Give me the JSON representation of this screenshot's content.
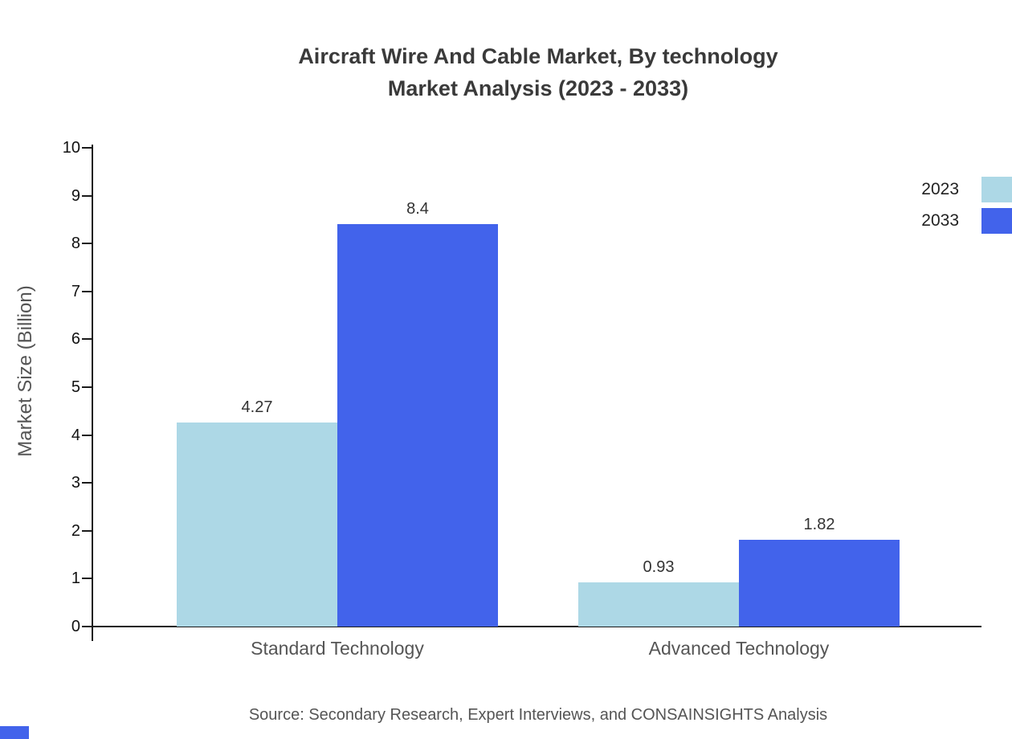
{
  "title": {
    "line1": "Aircraft Wire And Cable Market, By technology",
    "line2": "Market Analysis (2023 - 2033)"
  },
  "chart_data": {
    "type": "bar",
    "categories": [
      "Standard Technology",
      "Advanced Technology"
    ],
    "series": [
      {
        "name": "2023",
        "color": "#ADD8E6",
        "values": [
          4.27,
          0.93
        ]
      },
      {
        "name": "2033",
        "color": "#4263EB",
        "values": [
          8.4,
          1.82
        ]
      }
    ],
    "title": "Aircraft Wire And Cable Market, By technology Market Analysis (2023 - 2033)",
    "xlabel": "",
    "ylabel": "Market Size (Billion)",
    "ylim": [
      0,
      10
    ],
    "ytick_step": 1,
    "grid": false,
    "legend_position": "top-right",
    "value_labels": [
      "4.27",
      "8.4",
      "0.93",
      "1.82"
    ]
  },
  "colors": {
    "accent_blue": "#4263EB",
    "light_blue": "#ADD8E6",
    "axis": "#1a1a1a",
    "text_muted": "#555555"
  },
  "footer": {
    "source": "Source: Secondary Research, Expert Interviews, and CONSAINSIGHTS Analysis"
  }
}
